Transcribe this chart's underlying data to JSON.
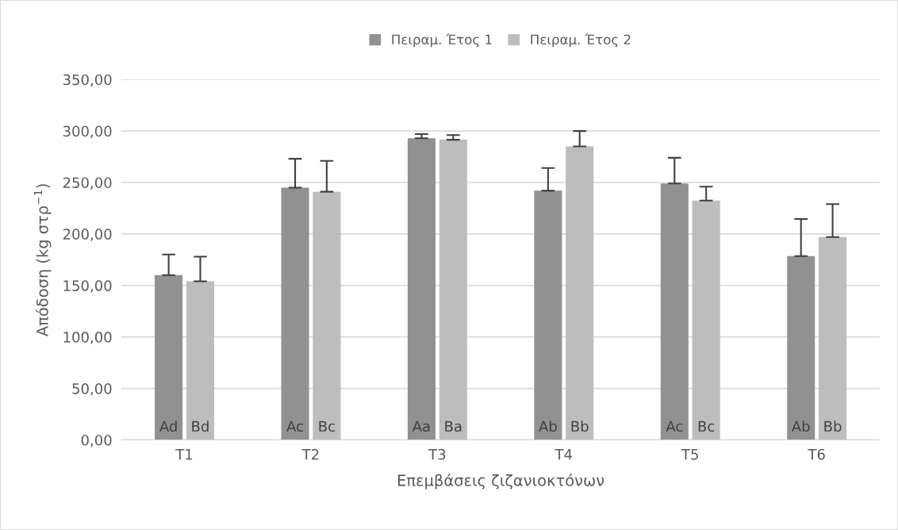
{
  "chart_data": {
    "type": "bar",
    "xlabel": "Επεμβάσεις ζιζανιοκτόνων",
    "ylabel": "Απόδοση (kg στρ$^{−1}$)",
    "categories": [
      "T1",
      "T2",
      "T3",
      "T4",
      "T5",
      "T6"
    ],
    "series": [
      {
        "name": "Πειραμ. Έτος 1",
        "color": "#919191",
        "values": [
          160,
          245,
          293,
          242,
          249,
          178.5
        ],
        "errors": [
          [
            160,
            180
          ],
          [
            245,
            273
          ],
          [
            293,
            297
          ],
          [
            242,
            264
          ],
          [
            249,
            274
          ],
          [
            178.5,
            214.5
          ]
        ],
        "value_labels": [
          "Ad",
          "Ac",
          "Aa",
          "Ab",
          "Ac",
          "Ab"
        ]
      },
      {
        "name": "Πειραμ. Έτος 2",
        "color": "#bdbdbd",
        "values": [
          154,
          241,
          291.5,
          285,
          232.5,
          197
        ],
        "errors": [
          [
            154,
            178
          ],
          [
            241,
            271
          ],
          [
            291.5,
            296
          ],
          [
            285,
            300
          ],
          [
            232.5,
            246
          ],
          [
            197,
            229
          ]
        ],
        "value_labels": [
          "Bd",
          "Bc",
          "Ba",
          "Bb",
          "Bc",
          "Bb"
        ]
      }
    ],
    "ylim": [
      0,
      350
    ],
    "yticks": [
      {
        "value": 0,
        "label": "0,00"
      },
      {
        "value": 50,
        "label": "50,00"
      },
      {
        "value": 100,
        "label": "100,00"
      },
      {
        "value": 150,
        "label": "150,00"
      },
      {
        "value": 200,
        "label": "200,00"
      },
      {
        "value": 250,
        "label": "250,00"
      },
      {
        "value": 300,
        "label": "300,00"
      },
      {
        "value": 350,
        "label": "350,00"
      }
    ],
    "grid": "y",
    "legend": "top"
  }
}
